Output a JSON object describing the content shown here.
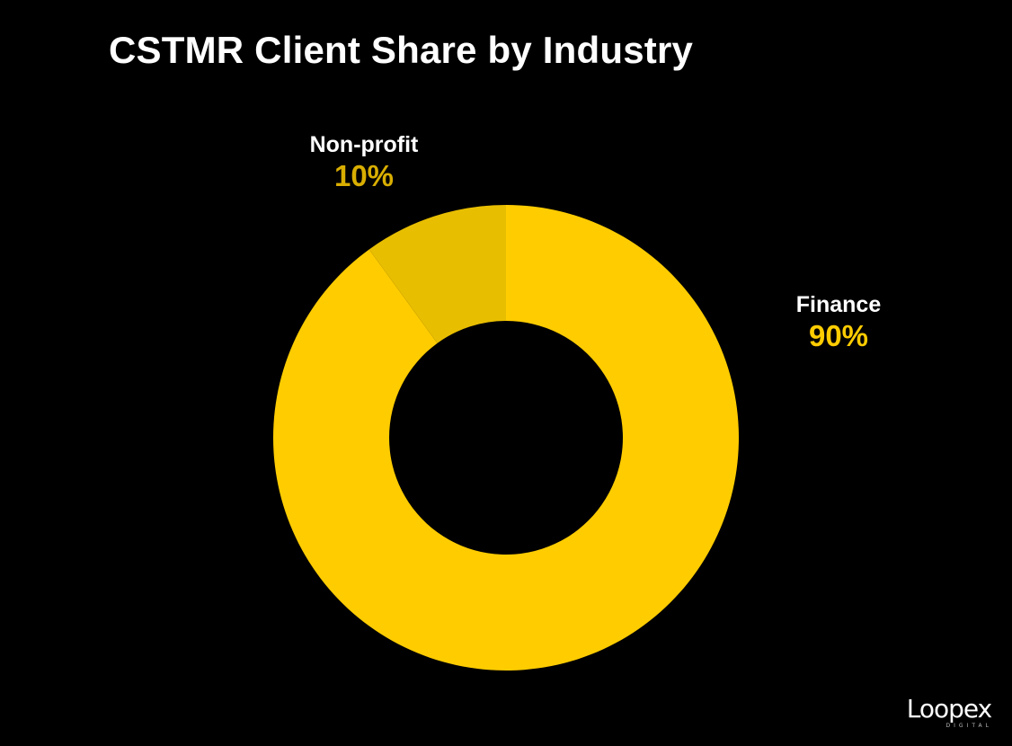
{
  "chart_data": {
    "type": "pie",
    "title": "CSTMR Client Share by Industry",
    "donut": true,
    "slices": [
      {
        "label": "Finance",
        "value": 90,
        "display": "90%",
        "color": "#FFCC00",
        "label_color": "#FFCC00"
      },
      {
        "label": "Non-profit",
        "value": 10,
        "display": "10%",
        "color": "#E8BE00",
        "label_color": "#D9AE00"
      }
    ],
    "background": "#000000",
    "legend": "none"
  },
  "brand": {
    "logo_text": "Loopex",
    "logo_subtext": "DIGITAL"
  }
}
